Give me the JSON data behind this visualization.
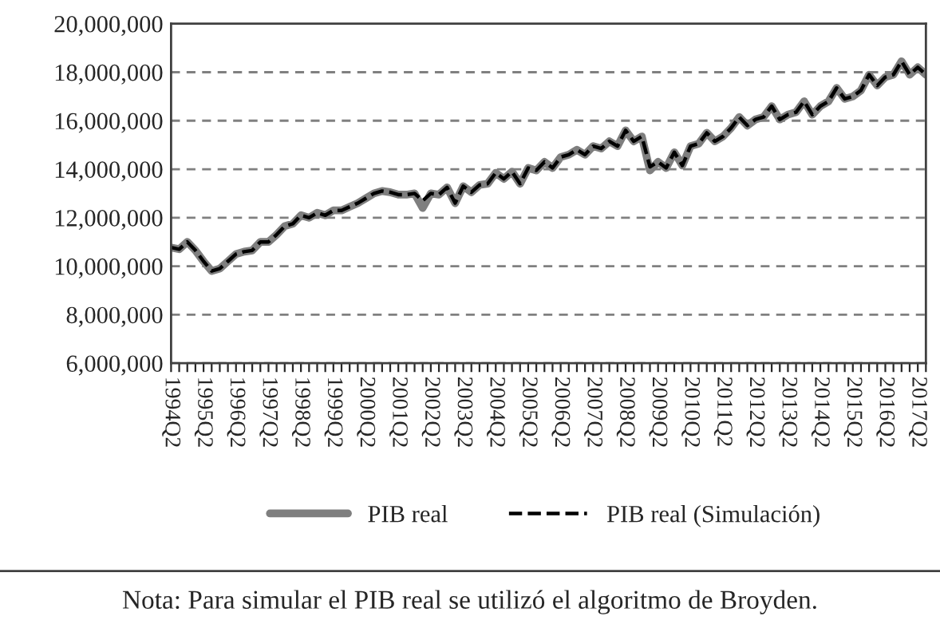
{
  "chart_data": {
    "type": "line",
    "categories": [
      "1994Q2",
      null,
      null,
      null,
      "1995Q2",
      null,
      null,
      null,
      "1996Q2",
      null,
      null,
      null,
      "1997Q2",
      null,
      null,
      null,
      "1998Q2",
      null,
      null,
      null,
      "1999Q2",
      null,
      null,
      null,
      "2000Q2",
      null,
      null,
      null,
      "2001Q2",
      null,
      null,
      null,
      "2002Q2",
      null,
      null,
      null,
      "2003Q2",
      null,
      null,
      null,
      "2004Q2",
      null,
      null,
      null,
      "2005Q2",
      null,
      null,
      null,
      "2006Q2",
      null,
      null,
      null,
      "2007Q2",
      null,
      null,
      null,
      "2008Q2",
      null,
      null,
      null,
      "2009Q2",
      null,
      null,
      null,
      "2010Q2",
      null,
      null,
      null,
      "2011Q2",
      null,
      null,
      null,
      "2012Q2",
      null,
      null,
      null,
      "2013Q2",
      null,
      null,
      null,
      "2014Q2",
      null,
      null,
      null,
      "2015Q2",
      null,
      null,
      null,
      "2016Q2",
      null,
      null,
      null,
      "2017Q2",
      null
    ],
    "series": [
      {
        "name": "PIB real",
        "color": "#7f7f7f",
        "line_style": "solid",
        "values": [
          10770000,
          10700000,
          11000000,
          10650000,
          10200000,
          9800000,
          9900000,
          10200000,
          10500000,
          10600000,
          10650000,
          11000000,
          11000000,
          11300000,
          11650000,
          11750000,
          12100000,
          12000000,
          12200000,
          12100000,
          12300000,
          12300000,
          12450000,
          12600000,
          12800000,
          13000000,
          13100000,
          13050000,
          12950000,
          12950000,
          13000000,
          12400000,
          13000000,
          12950000,
          13250000,
          12600000,
          13300000,
          13050000,
          13350000,
          13400000,
          13850000,
          13600000,
          13900000,
          13400000,
          14050000,
          13950000,
          14300000,
          14050000,
          14500000,
          14600000,
          14800000,
          14600000,
          14950000,
          14850000,
          15150000,
          14950000,
          15600000,
          15150000,
          15350000,
          13950000,
          14300000,
          14050000,
          14700000,
          14150000,
          14950000,
          15050000,
          15500000,
          15150000,
          15350000,
          15700000,
          16150000,
          15800000,
          16050000,
          16150000,
          16600000,
          16050000,
          16250000,
          16350000,
          16800000,
          16250000,
          16600000,
          16800000,
          17350000,
          16900000,
          17000000,
          17250000,
          17900000,
          17450000,
          17800000,
          17900000,
          18450000,
          17900000,
          18200000,
          17900000
        ]
      },
      {
        "name": "PIB real (Simulación)",
        "color": "#000000",
        "line_style": "dashed",
        "values": [
          10770000,
          10700000,
          11000000,
          10650000,
          10200000,
          9800000,
          9900000,
          10200000,
          10500000,
          10600000,
          10650000,
          11000000,
          11000000,
          11300000,
          11650000,
          11750000,
          12100000,
          12000000,
          12200000,
          12100000,
          12300000,
          12300000,
          12450000,
          12600000,
          12800000,
          13000000,
          13100000,
          13050000,
          12950000,
          12950000,
          13000000,
          12700000,
          13000000,
          12950000,
          13250000,
          12600000,
          13300000,
          13050000,
          13350000,
          13400000,
          13850000,
          13600000,
          13900000,
          13400000,
          14050000,
          13950000,
          14300000,
          14050000,
          14500000,
          14600000,
          14800000,
          14600000,
          14950000,
          14850000,
          15150000,
          14950000,
          15600000,
          15150000,
          15350000,
          14100000,
          14300000,
          14050000,
          14700000,
          14150000,
          14950000,
          15050000,
          15500000,
          15150000,
          15350000,
          15700000,
          16150000,
          15800000,
          16050000,
          16150000,
          16600000,
          16050000,
          16250000,
          16350000,
          16800000,
          16250000,
          16600000,
          16800000,
          17350000,
          16900000,
          17000000,
          17250000,
          17900000,
          17450000,
          17800000,
          17900000,
          18450000,
          17900000,
          18200000,
          17900000
        ]
      }
    ],
    "ylim": [
      6000000,
      20000000
    ],
    "yticks": [
      {
        "value": 6000000,
        "label": "6,000,000"
      },
      {
        "value": 8000000,
        "label": "8,000,000"
      },
      {
        "value": 10000000,
        "label": "10,000,000"
      },
      {
        "value": 12000000,
        "label": "12,000,000"
      },
      {
        "value": 14000000,
        "label": "14,000,000"
      },
      {
        "value": 16000000,
        "label": "16,000,000"
      },
      {
        "value": 18000000,
        "label": "18,000,000"
      },
      {
        "value": 20000000,
        "label": "20,000,000"
      }
    ],
    "grid": "y",
    "legend": "bottom",
    "annotations": [
      "Nota: Para simular el PIB real se utilizó el algoritmo de Broyden."
    ]
  }
}
